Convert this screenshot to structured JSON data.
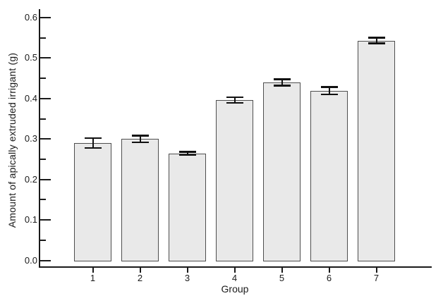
{
  "figure": {
    "background_color": "#ffffff",
    "bar_fill_color": "#e9e9e9",
    "bar_border_color": "#4e4e4e",
    "axis_color": "#1a1a1a",
    "error_bar_color": "#111111"
  },
  "chart_data": {
    "type": "bar",
    "title": "",
    "xlabel": "Group",
    "ylabel": "Amount of apically extruded irrigant (g)",
    "categories": [
      "1",
      "2",
      "3",
      "4",
      "5",
      "6",
      "7"
    ],
    "values": [
      0.29,
      0.3,
      0.264,
      0.396,
      0.44,
      0.419,
      0.543
    ],
    "errors": [
      0.012,
      0.008,
      0.004,
      0.007,
      0.008,
      0.009,
      0.007
    ],
    "error_bar_style": "symmetric with caps",
    "ylim": [
      0.0,
      0.6
    ],
    "yticks": [
      0.0,
      0.1,
      0.2,
      0.3,
      0.4,
      0.5,
      0.6
    ],
    "ytick_labels": [
      "0.0",
      "0.1",
      "0.2",
      "0.3",
      "0.4",
      "0.5",
      "0.6"
    ],
    "minor_ytick_interval": 0.05,
    "grid": false,
    "legend": "none"
  }
}
